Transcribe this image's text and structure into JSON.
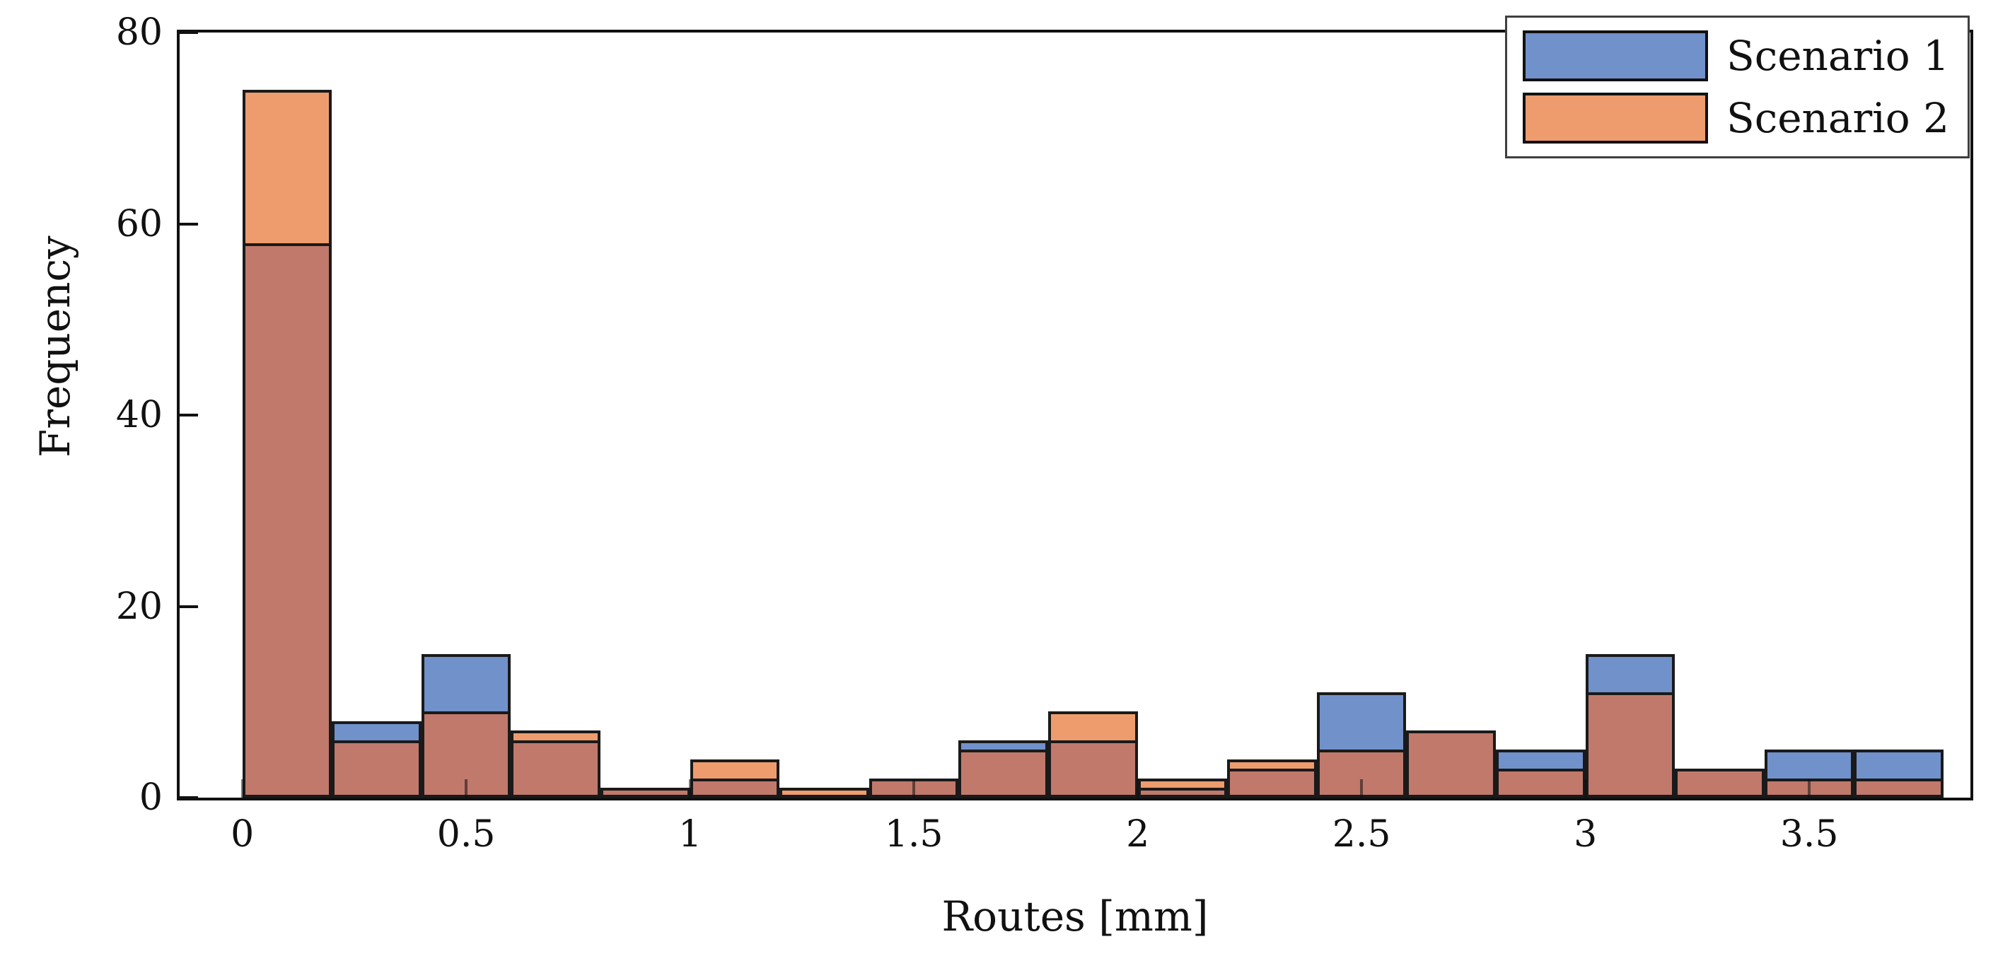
{
  "chart_data": {
    "type": "bar",
    "subtype": "overlaid-histogram",
    "title": "",
    "xlabel": "Routes [mm]",
    "ylabel": "Frequency",
    "bin_start": 0,
    "bin_width": 0.2,
    "xlim": [
      -0.14,
      3.86
    ],
    "ylim": [
      0,
      80
    ],
    "xticks": [
      0,
      0.5,
      1,
      1.5,
      2,
      2.5,
      3,
      3.5
    ],
    "xtick_labels": [
      "0",
      "0.5",
      "1",
      "1.5",
      "2",
      "2.5",
      "3",
      "3.5"
    ],
    "yticks": [
      0,
      20,
      40,
      60,
      80
    ],
    "ytick_labels": [
      "0",
      "20",
      "40",
      "60",
      "80"
    ],
    "grid": false,
    "legend_position": "top-right",
    "edge_color": "#1a1a1a",
    "overlap_color": "#C1796B",
    "series": [
      {
        "name": "Scenario 1",
        "color": "#7191CB",
        "values": [
          58,
          8,
          15,
          6,
          1,
          2,
          0,
          2,
          6,
          6,
          1,
          3,
          11,
          7,
          5,
          15,
          3,
          5,
          5
        ]
      },
      {
        "name": "Scenario 2",
        "color": "#EE9C6E",
        "values": [
          74,
          6,
          9,
          7,
          1,
          4,
          1,
          2,
          5,
          9,
          2,
          4,
          5,
          7,
          3,
          11,
          3,
          2,
          2
        ]
      }
    ]
  }
}
